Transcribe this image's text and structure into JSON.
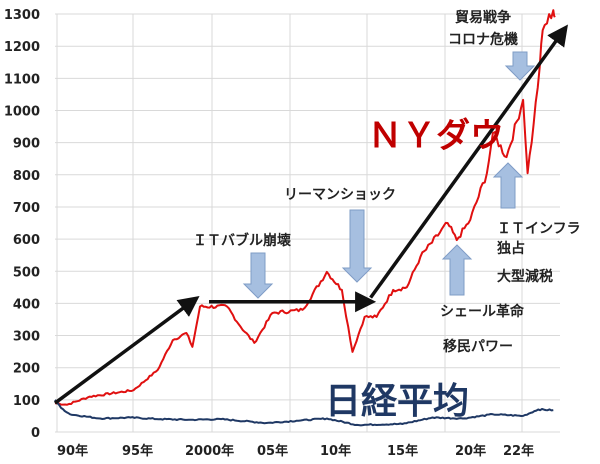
{
  "chart_data": {
    "type": "line",
    "title": "",
    "xlabel": "",
    "ylabel": "",
    "ylim": [
      0,
      1300
    ],
    "yticks": [
      0,
      100,
      200,
      300,
      400,
      500,
      600,
      700,
      800,
      900,
      1000,
      1100,
      1200,
      1300
    ],
    "xtick_labels": [
      "90年",
      "95年",
      "2000年",
      "05年",
      "10年",
      "15年",
      "20年",
      "22年"
    ],
    "grid": true,
    "series": [
      {
        "name": "ＮＹダウ",
        "color": "#e01010",
        "points": [
          [
            1989.0,
            90
          ],
          [
            1989.8,
            85
          ],
          [
            1991.3,
            110
          ],
          [
            1994.2,
            130
          ],
          [
            1995.8,
            193
          ],
          [
            1996.8,
            286
          ],
          [
            1997.7,
            308
          ],
          [
            1998.1,
            265
          ],
          [
            1998.6,
            390
          ],
          [
            2000.4,
            390
          ],
          [
            2001.3,
            327
          ],
          [
            2002.2,
            277
          ],
          [
            2003.4,
            370
          ],
          [
            2005.4,
            380
          ],
          [
            2007.0,
            498
          ],
          [
            2008.0,
            442
          ],
          [
            2008.7,
            249
          ],
          [
            2009.5,
            358
          ],
          [
            2010.3,
            358
          ],
          [
            2011.4,
            442
          ],
          [
            2012.3,
            450
          ],
          [
            2013.2,
            545
          ],
          [
            2015.0,
            650
          ],
          [
            2015.6,
            597
          ],
          [
            2016.5,
            660
          ],
          [
            2017.6,
            805
          ],
          [
            2018.0,
            930
          ],
          [
            2018.9,
            855
          ],
          [
            2020.0,
            1033
          ],
          [
            2020.3,
            805
          ],
          [
            2020.7,
            960
          ],
          [
            2021.1,
            1135
          ],
          [
            2021.3,
            1250
          ],
          [
            2022.0,
            1312
          ],
          [
            2022.1,
            1290
          ]
        ]
      },
      {
        "name": "日経平均",
        "color": "#1f3864",
        "points": [
          [
            1989.0,
            100
          ],
          [
            1989.4,
            75
          ],
          [
            1990.0,
            55
          ],
          [
            1992.0,
            42
          ],
          [
            1994.0,
            45
          ],
          [
            1996.0,
            40
          ],
          [
            1998.0,
            38
          ],
          [
            2000.0,
            40
          ],
          [
            2003.0,
            28
          ],
          [
            2005.0,
            35
          ],
          [
            2007.0,
            42
          ],
          [
            2009.0,
            22
          ],
          [
            2012.0,
            25
          ],
          [
            2014.0,
            45
          ],
          [
            2016.0,
            42
          ],
          [
            2018.0,
            55
          ],
          [
            2020.0,
            50
          ],
          [
            2021.0,
            70
          ],
          [
            2022.0,
            68
          ]
        ]
      }
    ],
    "trend_arrows": [
      {
        "from": [
          1989.0,
          90
        ],
        "to": [
          1998.2,
          410
        ]
      },
      {
        "from": [
          1999.2,
          405
        ],
        "to": [
          2009.8,
          405
        ]
      },
      {
        "from": [
          2009.9,
          418
        ],
        "to": [
          2022.7,
          1250
        ]
      }
    ],
    "annotations": {
      "it_bubble": "ＩＴバブル崩壊",
      "lehman": "リーマンショック",
      "trade_war": "貿易戦争",
      "corona": "コロナ危機",
      "it_infra": "ＩＴインフラ",
      "monopoly": "独占",
      "tax_cut": "大型減税",
      "shale": "シェール革命",
      "immigrant": "移民パワー"
    },
    "arrow_color": "#a6bfe0"
  }
}
